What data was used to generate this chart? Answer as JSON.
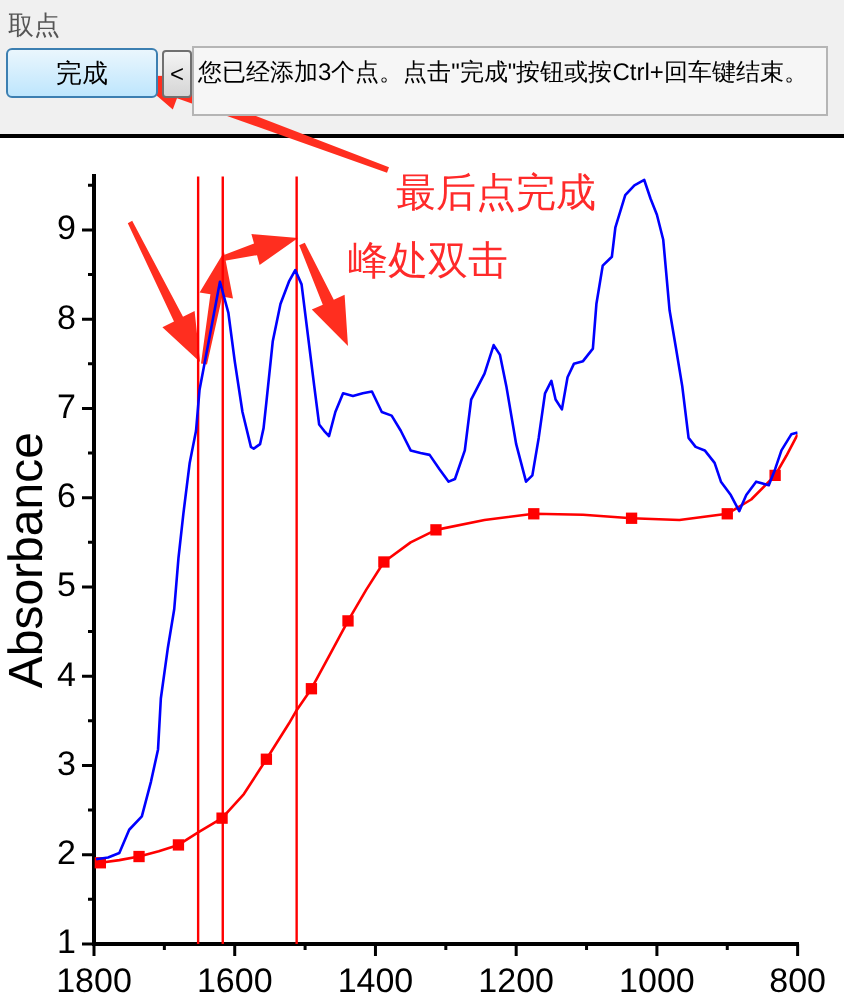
{
  "chart_data": {
    "type": "line",
    "ylabel": "Absorbance",
    "annotations": [
      "取点",
      "完成",
      "<",
      "您已经添加3个点。点击\"完成\"按钮或按Ctrl+回车键结束。",
      "最后点完成",
      "峰处双击"
    ],
    "xlim": [
      1800,
      800
    ],
    "xticks": [
      1800,
      {
        "value": 1700,
        "label": null
      },
      1600,
      {
        "value": 1500,
        "label": null
      },
      1400,
      {
        "value": 1300,
        "label": null
      },
      1200,
      {
        "value": 1100,
        "label": null
      },
      1000,
      {
        "value": 900,
        "label": null
      },
      800
    ],
    "ylim": [
      1,
      9.6
    ],
    "yticks": [
      1,
      {
        "value": 1.5,
        "label": null
      },
      2,
      {
        "value": 2.5,
        "label": null
      },
      3,
      {
        "value": 3.5,
        "label": null
      },
      4,
      {
        "value": 4.5,
        "label": null
      },
      5,
      {
        "value": 5.5,
        "label": null
      },
      6,
      {
        "value": 6.5,
        "label": null
      },
      7,
      {
        "value": 7.5,
        "label": null
      },
      8,
      {
        "value": 8.5,
        "label": null
      },
      9,
      {
        "value": 9.5,
        "label": null
      }
    ],
    "marker": "none",
    "ref_lines": [
      {
        "axis": "x",
        "value": 1652,
        "color": "#ff0000"
      },
      {
        "axis": "x",
        "value": 1617,
        "color": "#ff0000"
      },
      {
        "axis": "x",
        "value": 1512,
        "color": "#ff0000"
      }
    ],
    "series": [
      {
        "color": "#0000ff",
        "x": [
          1797,
          1780,
          1764,
          1750,
          1732,
          1719,
          1709,
          1705,
          1695,
          1686,
          1680,
          1673,
          1664,
          1655,
          1650,
          1637,
          1621,
          1609,
          1600,
          1589,
          1577,
          1573,
          1564,
          1559,
          1555,
          1546,
          1535,
          1523,
          1514,
          1505,
          1496,
          1487,
          1480,
          1473,
          1466,
          1457,
          1446,
          1432,
          1418,
          1405,
          1391,
          1377,
          1364,
          1350,
          1336,
          1323,
          1309,
          1296,
          1287,
          1273,
          1264,
          1245,
          1232,
          1223,
          1214,
          1200,
          1186,
          1177,
          1168,
          1159,
          1150,
          1144,
          1135,
          1127,
          1118,
          1105,
          1091,
          1086,
          1077,
          1064,
          1059,
          1045,
          1032,
          1018,
          1009,
          1000,
          991,
          982,
          973,
          964,
          955,
          945,
          932,
          918,
          909,
          895,
          883,
          873,
          859,
          841,
          832,
          823,
          809,
          800
        ],
        "values": [
          1.95,
          1.97,
          2.02,
          2.28,
          2.43,
          2.82,
          3.18,
          3.75,
          4.32,
          4.75,
          5.32,
          5.82,
          6.39,
          6.75,
          7.21,
          7.75,
          8.42,
          8.07,
          7.53,
          6.96,
          6.57,
          6.55,
          6.6,
          6.78,
          7.07,
          7.75,
          8.17,
          8.42,
          8.55,
          8.39,
          7.82,
          7.25,
          6.82,
          6.75,
          6.69,
          6.96,
          7.17,
          7.14,
          7.17,
          7.19,
          6.96,
          6.92,
          6.75,
          6.53,
          6.5,
          6.48,
          6.32,
          6.18,
          6.21,
          6.53,
          7.1,
          7.39,
          7.71,
          7.6,
          7.25,
          6.6,
          6.18,
          6.25,
          6.67,
          7.17,
          7.31,
          7.1,
          6.99,
          7.35,
          7.5,
          7.53,
          7.67,
          8.17,
          8.6,
          8.7,
          9.03,
          9.39,
          9.5,
          9.56,
          9.35,
          9.17,
          8.89,
          8.1,
          7.68,
          7.25,
          6.67,
          6.57,
          6.53,
          6.39,
          6.18,
          6.03,
          5.85,
          6.03,
          6.18,
          6.14,
          6.32,
          6.53,
          6.71,
          6.73
        ]
      },
      {
        "color": "#ff0000",
        "x": [
          1791,
          1764,
          1736,
          1708,
          1680,
          1652,
          1618,
          1587,
          1555,
          1523,
          1512,
          1491,
          1465,
          1439,
          1413,
          1388,
          1350,
          1314,
          1245,
          1175,
          1105,
          1036,
          968,
          900,
          866,
          832,
          816,
          800
        ],
        "values": [
          1.91,
          1.94,
          1.98,
          2.04,
          2.11,
          2.25,
          2.41,
          2.68,
          3.07,
          3.47,
          3.62,
          3.86,
          4.24,
          4.62,
          4.97,
          5.28,
          5.5,
          5.64,
          5.75,
          5.82,
          5.81,
          5.77,
          5.75,
          5.82,
          5.98,
          6.25,
          6.47,
          6.71
        ]
      },
      {
        "type": "scatter",
        "color": "#ff0000",
        "marker": "square",
        "x": [
          1791,
          1736,
          1680,
          1618,
          1555,
          1491,
          1439,
          1388,
          1314,
          1175,
          1036,
          900,
          832
        ],
        "values": [
          1.91,
          1.98,
          2.11,
          2.41,
          3.07,
          3.86,
          4.62,
          5.28,
          5.64,
          5.82,
          5.77,
          5.82,
          6.25
        ]
      }
    ]
  }
}
